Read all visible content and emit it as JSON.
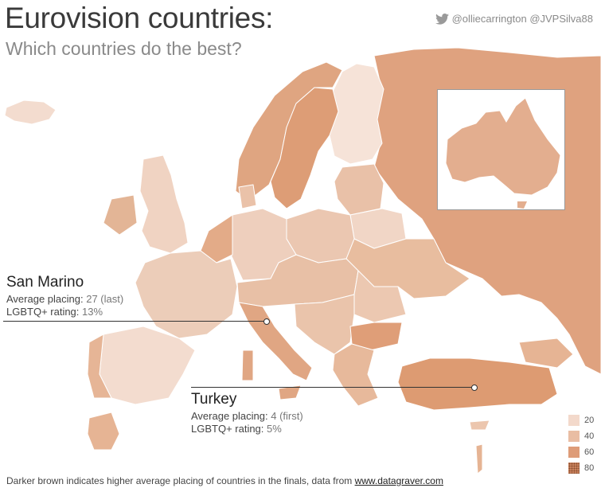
{
  "header": {
    "title": "Eurovision countries:",
    "subtitle": "Which countries do the best?",
    "credits": "@olliecarrington @JVPSilva88"
  },
  "callouts": {
    "san_marino": {
      "name": "San Marino",
      "placing_label": "Average placing:",
      "placing_value": "27 (last)",
      "rating_label": "LGBTQ+ rating:",
      "rating_value": "13%"
    },
    "turkey": {
      "name": "Turkey",
      "placing_label": "Average placing:",
      "placing_value": "4 (first)",
      "rating_label": "LGBTQ+ rating:",
      "rating_value": "5%"
    }
  },
  "legend": {
    "items": [
      {
        "label": "20",
        "color": "#f3d9cb"
      },
      {
        "label": "40",
        "color": "#e9bda3"
      },
      {
        "label": "60",
        "color": "#de9c78"
      },
      {
        "label": "80",
        "color": "#c9825e"
      }
    ]
  },
  "footer": {
    "text": "Darker brown indicates higher average placing of countries in the finals, data from ",
    "link": "www.datagraver.com"
  },
  "colors": {
    "shade_1": "#f5e1d6",
    "shade_2": "#eed0bf",
    "shade_3": "#e8bea5",
    "shade_4": "#e0a784",
    "shade_5": "#d99a74",
    "border": "#ffffff"
  }
}
